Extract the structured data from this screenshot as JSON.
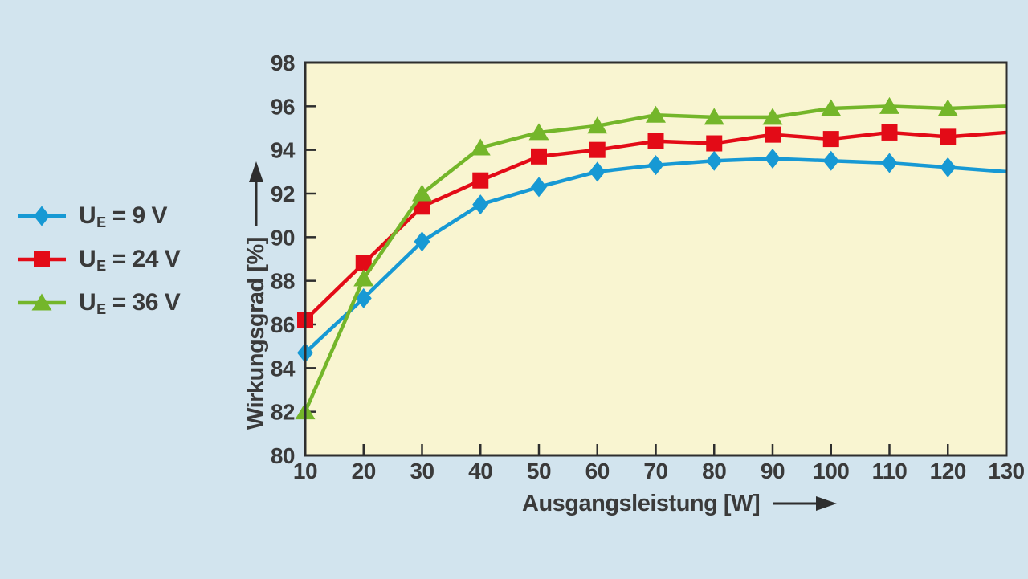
{
  "page": {
    "background": "#d2e4ee",
    "plot_background": "#f9f5d1",
    "axis_color": "#2e2e2e",
    "text_color": "#3a3a3a"
  },
  "legend": {
    "items": [
      {
        "symbol": "U",
        "sub": "E",
        "rest": "= 9 V",
        "marker": "diamond",
        "color": "#1799d4"
      },
      {
        "symbol": "U",
        "sub": "E",
        "rest": "= 24 V",
        "marker": "square",
        "color": "#e30b17"
      },
      {
        "symbol": "U",
        "sub": "E",
        "rest": "= 36 V",
        "marker": "triangle",
        "color": "#74b62a"
      }
    ]
  },
  "chart_data": {
    "type": "line",
    "title": "",
    "xlabel": "Ausgangsleistung [W]",
    "ylabel": "Wirkungsgrad [%]",
    "xlim": [
      10,
      130
    ],
    "ylim": [
      80,
      98
    ],
    "x_ticks": [
      10,
      20,
      30,
      40,
      50,
      60,
      70,
      80,
      90,
      100,
      110,
      120,
      130
    ],
    "y_ticks": [
      80,
      82,
      84,
      86,
      88,
      90,
      92,
      94,
      96,
      98
    ],
    "grid": false,
    "legend_position": "left",
    "marker_on_last_point": false,
    "x": [
      10,
      20,
      30,
      40,
      50,
      60,
      70,
      80,
      90,
      100,
      110,
      120,
      130
    ],
    "series": [
      {
        "name": "UE = 9 V",
        "marker": "diamond",
        "color": "#1799d4",
        "values": [
          84.7,
          87.2,
          89.8,
          91.5,
          92.3,
          93.0,
          93.3,
          93.5,
          93.6,
          93.5,
          93.4,
          93.2,
          93.0
        ]
      },
      {
        "name": "UE = 24 V",
        "marker": "square",
        "color": "#e30b17",
        "values": [
          86.2,
          88.8,
          91.4,
          92.6,
          93.7,
          94.0,
          94.4,
          94.3,
          94.7,
          94.5,
          94.8,
          94.6,
          94.8
        ]
      },
      {
        "name": "UE = 36 V",
        "marker": "triangle",
        "color": "#74b62a",
        "values": [
          82.0,
          88.1,
          92.0,
          94.1,
          94.8,
          95.1,
          95.6,
          95.5,
          95.5,
          95.9,
          96.0,
          95.9,
          96.0
        ]
      }
    ]
  }
}
